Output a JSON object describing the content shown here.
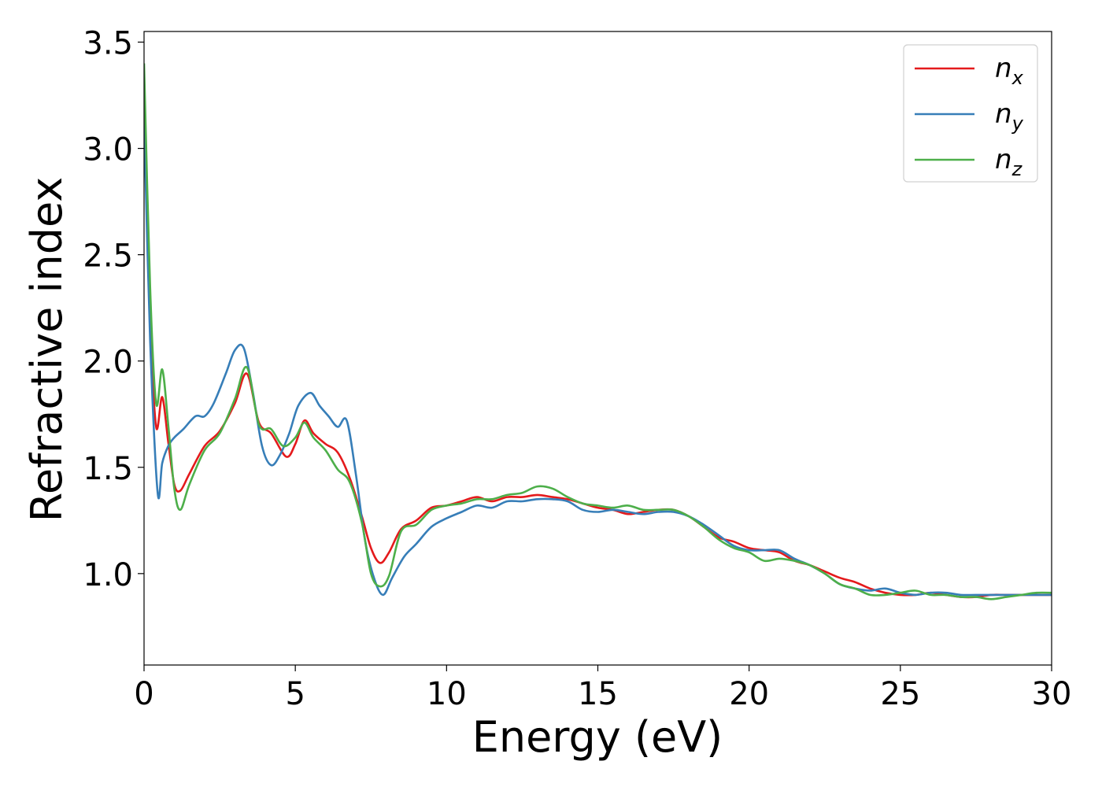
{
  "chart_data": {
    "type": "line",
    "title": "",
    "xlabel": "Energy (eV)",
    "ylabel": "Refractive index",
    "xlim": [
      0,
      30
    ],
    "ylim": [
      0.57,
      3.55
    ],
    "xticks": [
      "0",
      "5",
      "10",
      "15",
      "20",
      "25",
      "30"
    ],
    "yticks": [
      "1.0",
      "1.5",
      "2.0",
      "2.5",
      "3.0",
      "3.5"
    ],
    "legend_position": "top-right",
    "grid": false,
    "series": [
      {
        "name": "n",
        "subscript": "x",
        "color": "#e41a1c",
        "x": [
          0,
          0.2,
          0.4,
          0.6,
          0.8,
          1.0,
          1.2,
          1.5,
          2.0,
          2.5,
          3.0,
          3.4,
          3.8,
          4.2,
          4.7,
          5.0,
          5.3,
          5.6,
          6.0,
          6.4,
          6.8,
          7.2,
          7.5,
          7.8,
          8.1,
          8.5,
          9.0,
          9.5,
          10,
          10.5,
          11,
          11.5,
          12,
          12.5,
          13,
          13.5,
          14,
          14.5,
          15,
          15.5,
          16,
          16.5,
          17,
          17.5,
          18,
          18.5,
          19,
          19.5,
          20,
          20.5,
          21,
          21.5,
          22,
          22.5,
          23,
          23.5,
          24,
          24.5,
          25,
          25.5,
          26,
          26.5,
          27,
          27.5,
          28,
          28.5,
          29,
          29.5,
          30
        ],
        "values": [
          3.17,
          2.2,
          1.69,
          1.83,
          1.62,
          1.42,
          1.39,
          1.47,
          1.6,
          1.67,
          1.8,
          1.94,
          1.71,
          1.66,
          1.55,
          1.61,
          1.72,
          1.66,
          1.61,
          1.57,
          1.45,
          1.27,
          1.12,
          1.05,
          1.1,
          1.21,
          1.25,
          1.31,
          1.32,
          1.34,
          1.36,
          1.34,
          1.36,
          1.36,
          1.37,
          1.36,
          1.35,
          1.33,
          1.31,
          1.3,
          1.28,
          1.29,
          1.3,
          1.3,
          1.27,
          1.22,
          1.17,
          1.15,
          1.12,
          1.11,
          1.1,
          1.06,
          1.04,
          1.01,
          0.98,
          0.96,
          0.93,
          0.91,
          0.9,
          0.9,
          0.91,
          0.9,
          0.89,
          0.89,
          0.9,
          0.9,
          0.9,
          0.9,
          0.9
        ]
      },
      {
        "name": "n",
        "subscript": "y",
        "color": "#377eb8",
        "x": [
          0,
          0.2,
          0.45,
          0.6,
          0.8,
          1.0,
          1.3,
          1.7,
          2.0,
          2.3,
          2.7,
          3.0,
          3.3,
          3.6,
          3.9,
          4.2,
          4.5,
          4.8,
          5.1,
          5.5,
          5.8,
          6.1,
          6.4,
          6.7,
          7.0,
          7.3,
          7.6,
          7.9,
          8.2,
          8.6,
          9.0,
          9.5,
          10,
          10.5,
          11,
          11.5,
          12,
          12.5,
          13,
          13.5,
          14,
          14.5,
          15,
          15.5,
          16,
          16.5,
          17,
          17.5,
          18,
          18.5,
          19,
          19.5,
          20,
          20.5,
          21,
          21.5,
          22,
          22.5,
          23,
          23.5,
          24,
          24.5,
          25,
          25.5,
          26,
          26.5,
          27,
          27.5,
          28,
          28.5,
          29,
          29.5,
          30
        ],
        "values": [
          3.15,
          2.1,
          1.38,
          1.52,
          1.6,
          1.64,
          1.68,
          1.74,
          1.74,
          1.8,
          1.94,
          2.05,
          2.06,
          1.85,
          1.6,
          1.51,
          1.56,
          1.66,
          1.79,
          1.85,
          1.79,
          1.74,
          1.69,
          1.72,
          1.47,
          1.16,
          0.98,
          0.9,
          0.98,
          1.08,
          1.14,
          1.22,
          1.26,
          1.29,
          1.32,
          1.31,
          1.34,
          1.34,
          1.35,
          1.35,
          1.34,
          1.3,
          1.29,
          1.3,
          1.29,
          1.28,
          1.29,
          1.29,
          1.27,
          1.23,
          1.18,
          1.13,
          1.11,
          1.11,
          1.11,
          1.07,
          1.04,
          1.0,
          0.95,
          0.93,
          0.92,
          0.93,
          0.91,
          0.9,
          0.91,
          0.91,
          0.9,
          0.9,
          0.9,
          0.9,
          0.9,
          0.9,
          0.9
        ]
      },
      {
        "name": "n",
        "subscript": "z",
        "color": "#4daf4a",
        "x": [
          0,
          0.2,
          0.4,
          0.6,
          0.8,
          1.0,
          1.2,
          1.5,
          2.0,
          2.5,
          3.0,
          3.4,
          3.8,
          4.2,
          4.6,
          5.0,
          5.3,
          5.6,
          6.0,
          6.4,
          6.8,
          7.2,
          7.5,
          7.8,
          8.1,
          8.5,
          9.0,
          9.5,
          10,
          10.5,
          11,
          11.5,
          12,
          12.5,
          13,
          13.5,
          14,
          14.5,
          15,
          15.5,
          16,
          16.5,
          17,
          17.5,
          18,
          18.5,
          19,
          19.5,
          20,
          20.5,
          21,
          21.5,
          22,
          22.5,
          23,
          23.5,
          24,
          24.5,
          25,
          25.5,
          26,
          26.5,
          27,
          27.5,
          28,
          28.5,
          29,
          29.5,
          30
        ],
        "values": [
          3.4,
          2.35,
          1.8,
          1.96,
          1.7,
          1.4,
          1.3,
          1.42,
          1.58,
          1.66,
          1.82,
          1.97,
          1.7,
          1.68,
          1.6,
          1.64,
          1.71,
          1.64,
          1.58,
          1.49,
          1.43,
          1.24,
          1.0,
          0.94,
          0.99,
          1.2,
          1.23,
          1.3,
          1.32,
          1.33,
          1.35,
          1.35,
          1.37,
          1.38,
          1.41,
          1.4,
          1.36,
          1.33,
          1.32,
          1.31,
          1.32,
          1.3,
          1.3,
          1.3,
          1.27,
          1.22,
          1.16,
          1.12,
          1.1,
          1.06,
          1.07,
          1.06,
          1.04,
          1.0,
          0.95,
          0.93,
          0.9,
          0.9,
          0.91,
          0.92,
          0.9,
          0.9,
          0.89,
          0.89,
          0.88,
          0.89,
          0.9,
          0.91,
          0.91
        ]
      }
    ]
  }
}
